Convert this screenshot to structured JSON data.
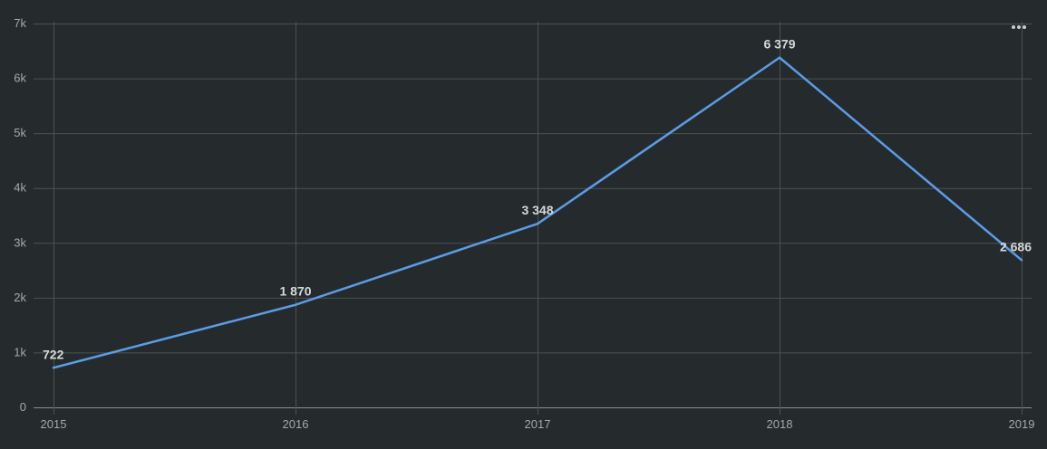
{
  "chart_data": {
    "type": "line",
    "categories": [
      "2015",
      "2016",
      "2017",
      "2018",
      "2019"
    ],
    "series": [
      {
        "values": [
          722,
          1870,
          3348,
          6379,
          2686
        ],
        "data_labels": [
          "722",
          "1 870",
          "3 348",
          "6 379",
          "2 686"
        ],
        "color": "#5b9ce8"
      }
    ],
    "ylim": [
      0,
      7000
    ],
    "y_ticks": [
      0,
      1000,
      2000,
      3000,
      4000,
      5000,
      6000,
      7000
    ],
    "y_tick_labels": [
      "0",
      "1k",
      "2k",
      "3k",
      "4k",
      "5k",
      "6k",
      "7k"
    ],
    "grid": true,
    "title": "",
    "xlabel": "",
    "ylabel": ""
  },
  "menu": {
    "icon": "more-horizontal-icon"
  },
  "colors": {
    "background": "#252b2c",
    "grid": "#4b5253",
    "tick_text": "#a4a8a8",
    "data_label": "#d6d8d8"
  }
}
